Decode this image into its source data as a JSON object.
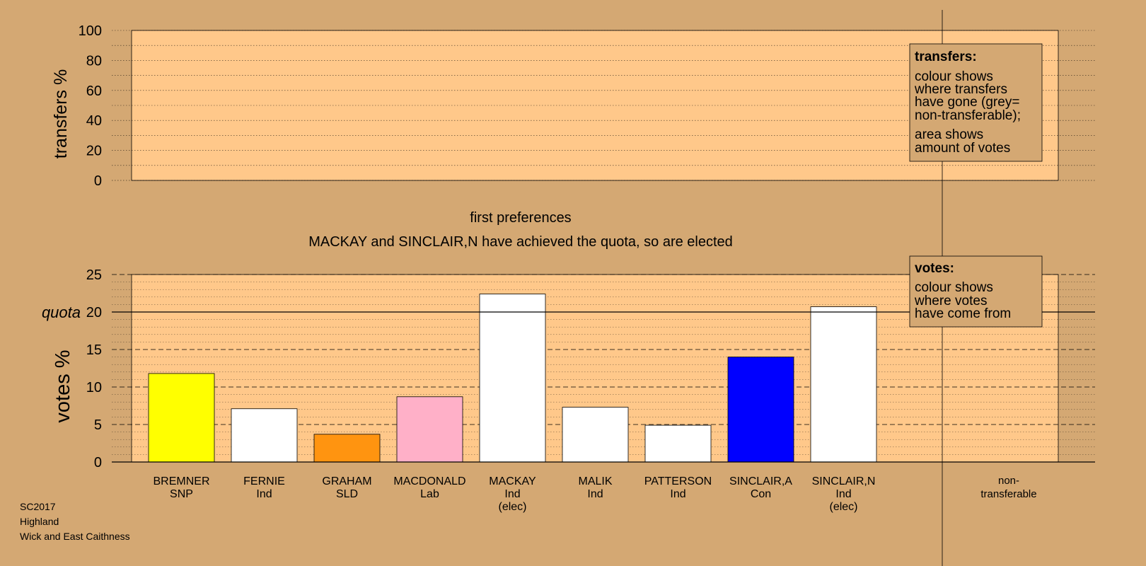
{
  "chart_data": {
    "type": "bar",
    "subtitle": "first preferences",
    "status_text": "MACKAY and SINCLAIR,N have achieved the quota, so are elected",
    "transfers_panel": {
      "ylabel": "transfers %",
      "ylim": [
        0,
        100
      ],
      "ticks": [
        "0",
        "20",
        "40",
        "60",
        "80",
        "100"
      ],
      "values": []
    },
    "votes_panel": {
      "ylabel": "votes %",
      "ylim": [
        0,
        25
      ],
      "ticks": [
        "0",
        "5",
        "10",
        "15",
        "20",
        "25"
      ],
      "quota_label": "quota",
      "quota": 20
    },
    "candidates": [
      {
        "name": "BREMNER",
        "party": "SNP",
        "elected": "",
        "value": 11.8,
        "color": "#ffff00"
      },
      {
        "name": "FERNIE",
        "party": "Ind",
        "elected": "",
        "value": 7.1,
        "color": "#ffffff"
      },
      {
        "name": "GRAHAM",
        "party": "SLD",
        "elected": "",
        "value": 3.7,
        "color": "#ff9410"
      },
      {
        "name": "MACDONALD",
        "party": "Lab",
        "elected": "",
        "value": 8.7,
        "color": "#ffb0c8"
      },
      {
        "name": "MACKAY",
        "party": "Ind",
        "elected": "(elec)",
        "value": 22.4,
        "color": "#ffffff"
      },
      {
        "name": "MALIK",
        "party": "Ind",
        "elected": "",
        "value": 7.3,
        "color": "#ffffff"
      },
      {
        "name": "PATTERSON",
        "party": "Ind",
        "elected": "",
        "value": 4.9,
        "color": "#ffffff"
      },
      {
        "name": "SINCLAIR,A",
        "party": "Con",
        "elected": "",
        "value": 14.0,
        "color": "#0000ff"
      },
      {
        "name": "SINCLAIR,N",
        "party": "Ind",
        "elected": "(elec)",
        "value": 20.7,
        "color": "#ffffff"
      }
    ],
    "non_transferable": {
      "line1": "non-",
      "line2": "transferable"
    },
    "legend_transfers": {
      "title": "transfers:",
      "lines1": [
        "colour shows",
        "where transfers",
        "have gone (grey=",
        "non-transferable);"
      ],
      "lines2": [
        "area shows",
        "amount of votes"
      ]
    },
    "legend_votes": {
      "title": "votes:",
      "lines": [
        "colour shows",
        "where votes",
        "have come from"
      ]
    },
    "colors": {
      "background": "#d4a873",
      "plot_fill": "#ffc88a"
    }
  },
  "footer": {
    "line1": "SC2017",
    "line2": "Highland",
    "line3": "Wick and East Caithness"
  }
}
